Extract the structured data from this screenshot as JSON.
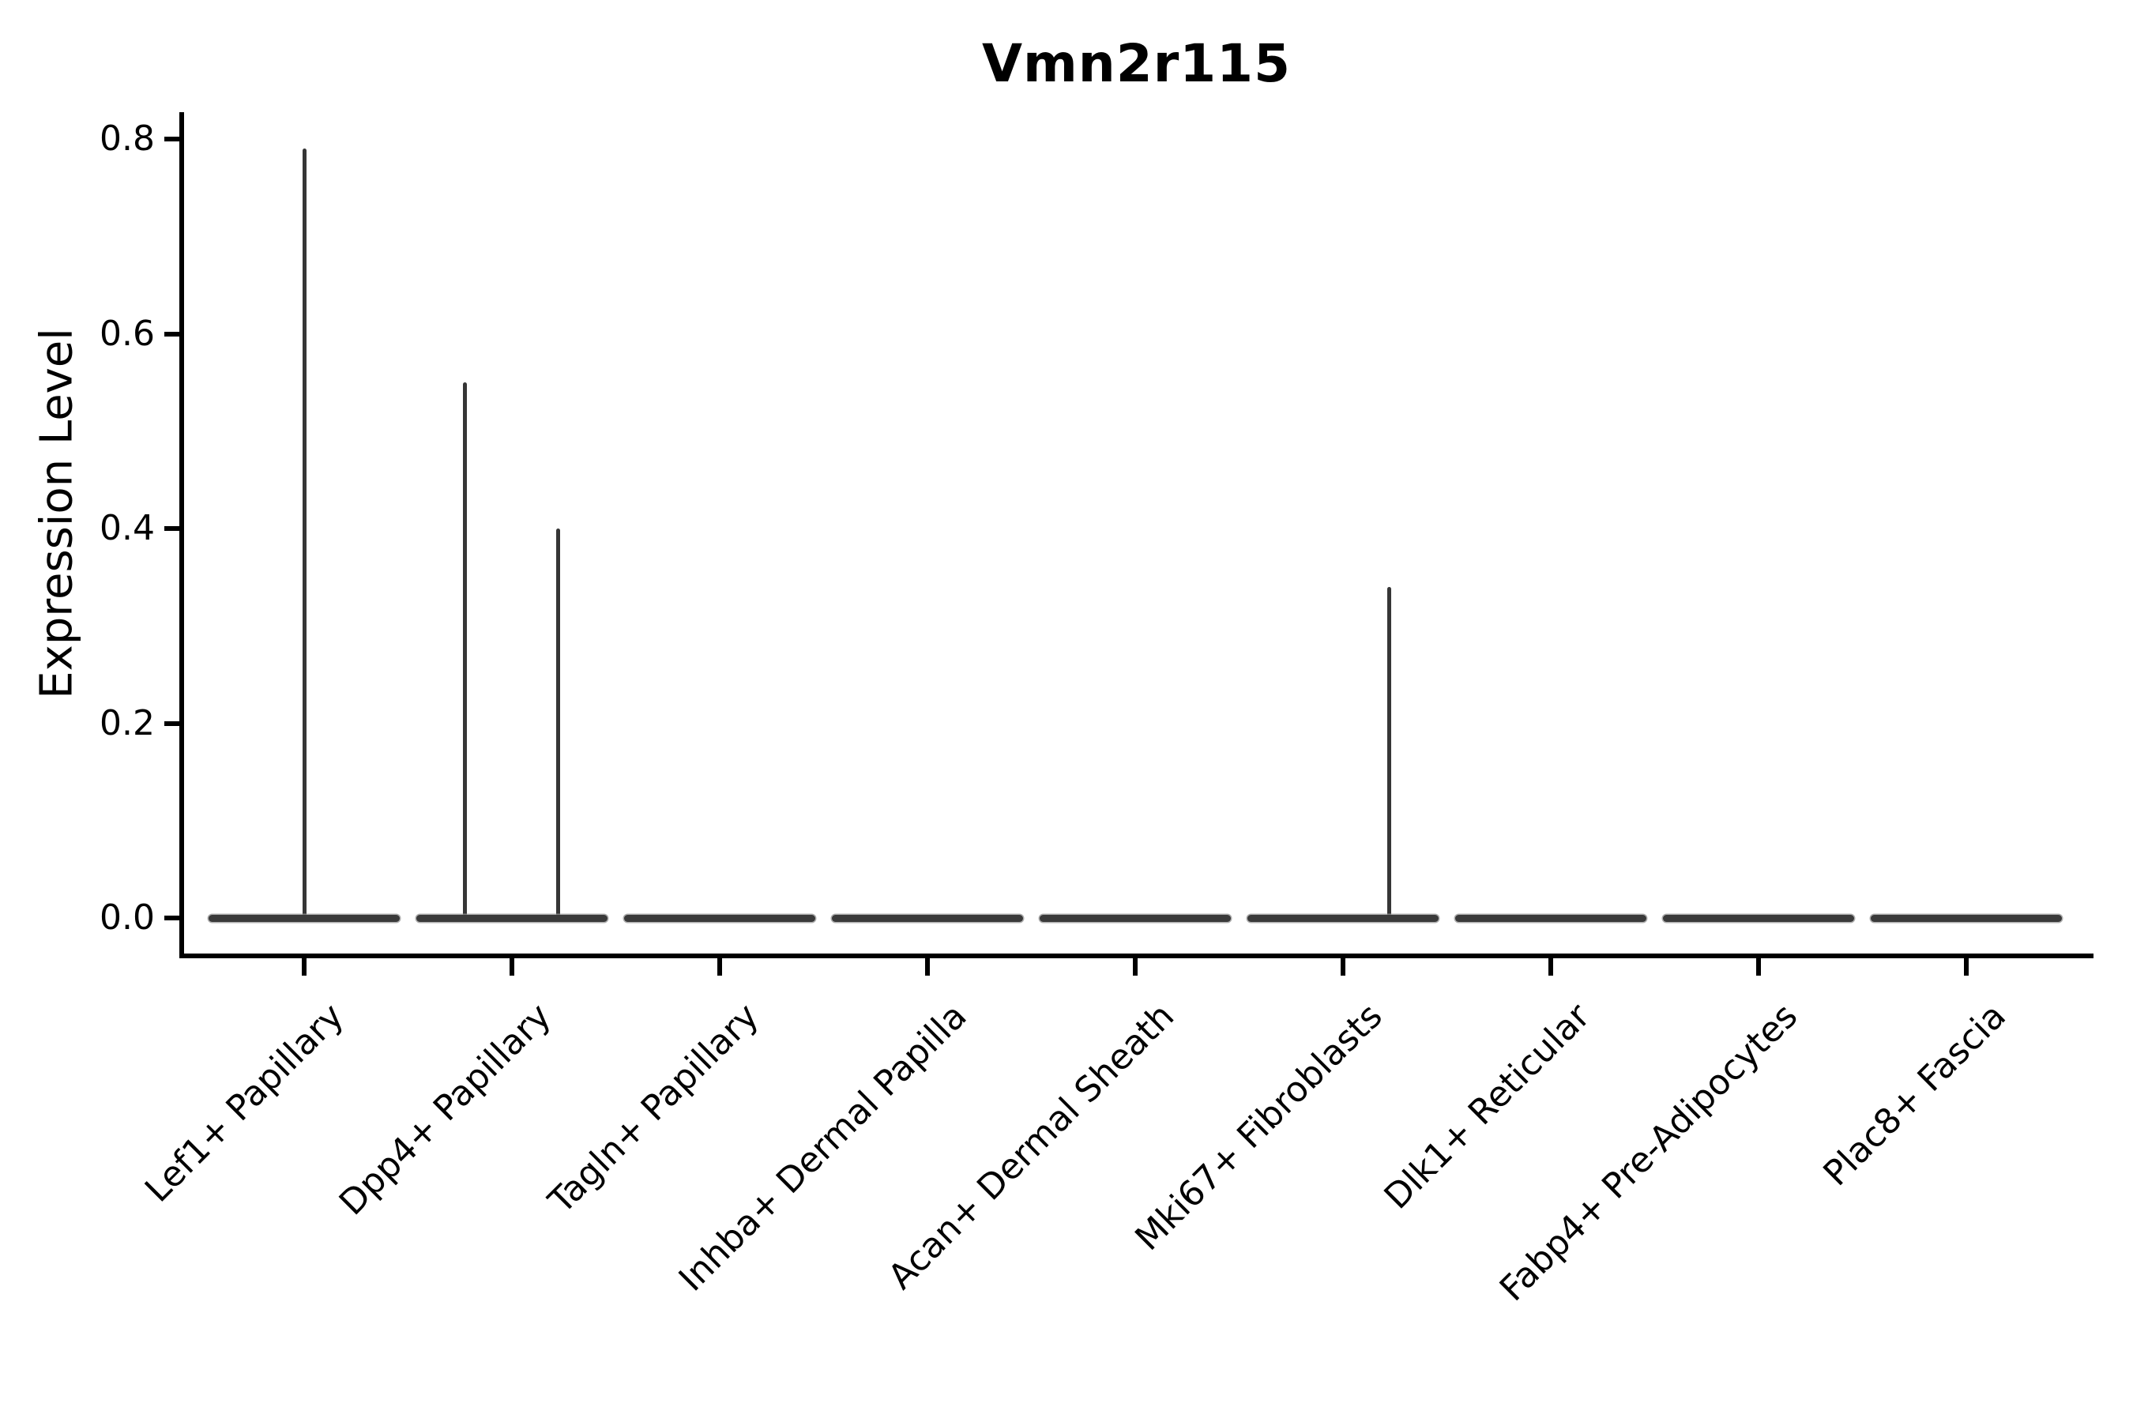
{
  "title": "Vmn2r115",
  "ylabel": "Expression Level",
  "colors": {
    "background": "#ffffff",
    "axis": "#000000",
    "text": "#000000",
    "violin_fill": "#3a3a3a",
    "violin_edge": "#949494",
    "spike": "#363636"
  },
  "chart_data": {
    "type": "violin",
    "title": "Vmn2r115",
    "xlabel": "",
    "ylabel": "Expression Level",
    "ylim": [
      0,
      0.83
    ],
    "yticks": [
      0.0,
      0.2,
      0.4,
      0.6,
      0.8
    ],
    "grid": false,
    "legend": "none",
    "categories": [
      "Lef1+ Papillary",
      "Dpp4+ Papillary",
      "Tagln+ Papillary",
      "Inhba+ Dermal Papilla",
      "Acan+ Dermal Sheath",
      "Mki67+ Fibroblasts",
      "Dlk1+ Reticular",
      "Fabp4+ Pre-Adipocytes",
      "Plac8+ Fascia"
    ],
    "violins": [
      {
        "category": "Lef1+ Papillary",
        "bulk_value": 0.0,
        "outlier_spikes": [
          {
            "value": 0.79,
            "x_offset": 0.0
          }
        ]
      },
      {
        "category": "Dpp4+ Papillary",
        "bulk_value": 0.0,
        "outlier_spikes": [
          {
            "value": 0.55,
            "x_offset": -0.228
          },
          {
            "value": 0.4,
            "x_offset": 0.224
          }
        ]
      },
      {
        "category": "Tagln+ Papillary",
        "bulk_value": 0.0,
        "outlier_spikes": []
      },
      {
        "category": "Inhba+ Dermal Papilla",
        "bulk_value": 0.0,
        "outlier_spikes": []
      },
      {
        "category": "Acan+ Dermal Sheath",
        "bulk_value": 0.0,
        "outlier_spikes": []
      },
      {
        "category": "Mki67+ Fibroblasts",
        "bulk_value": 0.0,
        "outlier_spikes": [
          {
            "value": 0.34,
            "x_offset": 0.224
          }
        ]
      },
      {
        "category": "Dlk1+ Reticular",
        "bulk_value": 0.0,
        "outlier_spikes": []
      },
      {
        "category": "Fabp4+ Pre-Adipocytes",
        "bulk_value": 0.0,
        "outlier_spikes": []
      },
      {
        "category": "Plac8+ Fascia",
        "bulk_value": 0.0,
        "outlier_spikes": []
      }
    ]
  }
}
